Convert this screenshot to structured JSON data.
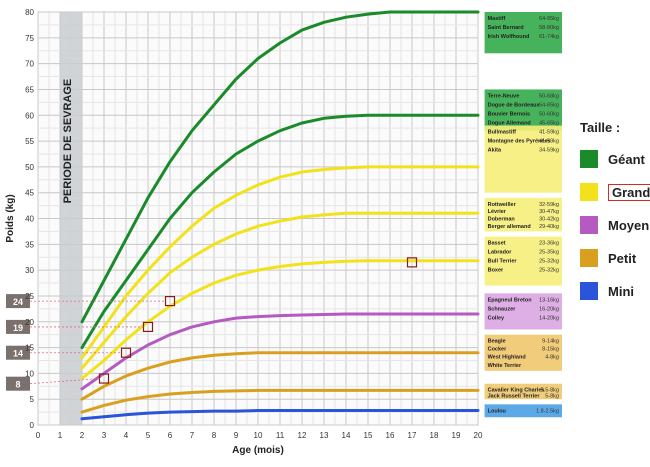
{
  "chart_data": {
    "type": "line",
    "xlabel": "Age (mois)",
    "ylabel": "Poids (kg)",
    "xlim": [
      0,
      20
    ],
    "ylim": [
      0,
      80
    ],
    "x_ticks": [
      "0",
      "1",
      "2",
      "3",
      "4",
      "5",
      "6",
      "7",
      "8",
      "9",
      "10",
      "11",
      "12",
      "13",
      "14",
      "15",
      "16",
      "17",
      "18",
      "19",
      "20"
    ],
    "y_ticks": [
      "0",
      "5",
      "10",
      "15",
      "20",
      "25",
      "30",
      "35",
      "40",
      "45",
      "50",
      "55",
      "60",
      "65",
      "70",
      "75",
      "80"
    ],
    "weaning_label": "PERIODE DE SEVRAGE",
    "weaning_range": [
      1,
      2
    ],
    "legend_title": "Taille :",
    "legend": [
      {
        "label": "Géant",
        "color": "#1a8a2a"
      },
      {
        "label": "Grand",
        "color": "#f2e21c",
        "highlight": true
      },
      {
        "label": "Moyen",
        "color": "#b45ac0"
      },
      {
        "label": "Petit",
        "color": "#d9a020"
      },
      {
        "label": "Mini",
        "color": "#2a55d8"
      }
    ],
    "series": [
      {
        "group": "Géant",
        "color": "#1a8a2a",
        "x": [
          2,
          3,
          4,
          5,
          6,
          7,
          8,
          9,
          10,
          11,
          12,
          13,
          14,
          15,
          16,
          17,
          18,
          19,
          20
        ],
        "y": [
          20,
          28,
          36,
          44,
          51,
          57,
          62,
          67,
          71,
          74,
          76.5,
          78,
          79,
          79.6,
          80,
          80,
          80,
          80,
          80
        ]
      },
      {
        "group": "Géant",
        "color": "#1a8a2a",
        "x": [
          2,
          3,
          4,
          5,
          6,
          7,
          8,
          9,
          10,
          11,
          12,
          13,
          14,
          15,
          16,
          17,
          18,
          19,
          20
        ],
        "y": [
          15,
          22,
          28,
          34,
          40,
          45,
          49,
          52.5,
          55,
          57,
          58.5,
          59.4,
          59.8,
          60,
          60,
          60,
          60,
          60,
          60
        ]
      },
      {
        "group": "Grand",
        "color": "#f2e21c",
        "x": [
          2,
          3,
          4,
          5,
          6,
          7,
          8,
          9,
          10,
          11,
          12,
          13,
          14,
          15,
          16,
          17,
          18,
          19,
          20
        ],
        "y": [
          13,
          19,
          25,
          30,
          34.5,
          38.5,
          42,
          44.5,
          46.5,
          48,
          49,
          49.5,
          49.8,
          50,
          50,
          50,
          50,
          50,
          50
        ]
      },
      {
        "group": "Grand",
        "color": "#f2e21c",
        "x": [
          2,
          3,
          4,
          5,
          6,
          7,
          8,
          9,
          10,
          11,
          12,
          13,
          14,
          15,
          16,
          17,
          18,
          19,
          20
        ],
        "y": [
          11,
          16,
          21,
          25.5,
          29.5,
          32.5,
          35,
          37,
          38.5,
          39.5,
          40.3,
          40.7,
          41,
          41,
          41,
          41,
          41,
          41,
          41
        ]
      },
      {
        "group": "Grand",
        "color": "#f2e21c",
        "x": [
          2,
          3,
          4,
          5,
          6,
          7,
          8,
          9,
          10,
          11,
          12,
          13,
          14,
          15,
          16,
          17,
          18,
          19,
          20
        ],
        "y": [
          9,
          12.5,
          16.5,
          20,
          23,
          25.5,
          27.5,
          29,
          30,
          30.7,
          31.2,
          31.5,
          31.7,
          31.8,
          31.8,
          31.8,
          31.8,
          31.8,
          31.8
        ]
      },
      {
        "group": "Moyen",
        "color": "#b45ac0",
        "x": [
          2,
          3,
          4,
          5,
          6,
          7,
          8,
          9,
          10,
          11,
          12,
          13,
          14,
          15,
          16,
          17,
          18,
          19,
          20
        ],
        "y": [
          7,
          10,
          13,
          15.5,
          17.5,
          19,
          20,
          20.7,
          21,
          21.2,
          21.3,
          21.4,
          21.5,
          21.5,
          21.5,
          21.5,
          21.5,
          21.5,
          21.5
        ]
      },
      {
        "group": "Petit",
        "color": "#d9a020",
        "x": [
          2,
          3,
          4,
          5,
          6,
          7,
          8,
          9,
          10,
          11,
          12,
          13,
          14,
          15,
          16,
          17,
          18,
          19,
          20
        ],
        "y": [
          5,
          7.5,
          9.5,
          11,
          12.2,
          13,
          13.5,
          13.8,
          14,
          14,
          14,
          14,
          14,
          14,
          14,
          14,
          14,
          14,
          14
        ]
      },
      {
        "group": "Petit",
        "color": "#d9a020",
        "x": [
          2,
          3,
          4,
          5,
          6,
          7,
          8,
          9,
          10,
          11,
          12,
          13,
          14,
          15,
          16,
          17,
          18,
          19,
          20
        ],
        "y": [
          2.5,
          3.8,
          4.8,
          5.5,
          6,
          6.3,
          6.5,
          6.6,
          6.7,
          6.7,
          6.7,
          6.7,
          6.7,
          6.7,
          6.7,
          6.7,
          6.7,
          6.7,
          6.7
        ]
      },
      {
        "group": "Mini",
        "color": "#2a55d8",
        "x": [
          2,
          3,
          4,
          5,
          6,
          7,
          8,
          9,
          10,
          11,
          12,
          13,
          14,
          15,
          16,
          17,
          18,
          19,
          20
        ],
        "y": [
          1.2,
          1.6,
          2,
          2.3,
          2.5,
          2.6,
          2.7,
          2.7,
          2.8,
          2.8,
          2.8,
          2.8,
          2.8,
          2.8,
          2.8,
          2.8,
          2.8,
          2.8,
          2.8
        ]
      }
    ],
    "marker_points": [
      {
        "x": 3,
        "y": 9
      },
      {
        "x": 4,
        "y": 14
      },
      {
        "x": 5,
        "y": 19
      },
      {
        "x": 6,
        "y": 24
      },
      {
        "x": 17,
        "y": 31.5
      }
    ],
    "left_tags": [
      "24",
      "19",
      "14",
      "8"
    ],
    "breed_boxes": [
      {
        "color": "#33aa4a",
        "y_top": 80,
        "y_bottom": 72,
        "rows": [
          [
            "Mastiff",
            "64-95kg"
          ],
          [
            "Saint Bernard",
            "58-80kg"
          ],
          [
            "Irish Wolfhound",
            "61-74kg"
          ]
        ]
      },
      {
        "color": "#33aa4a",
        "y_top": 65,
        "y_bottom": 57,
        "rows": [
          [
            "Terre-Neuve",
            "50-68kg"
          ],
          [
            "Dogue de Bordeaux",
            "54-65kg"
          ],
          [
            "Bouvier Bernois",
            "50-60kg"
          ],
          [
            "Dogue Allemand",
            "45-65kg"
          ]
        ]
      },
      {
        "color": "#f6ee7a",
        "y_top": 58,
        "y_bottom": 45,
        "rows": [
          [
            "Bullmastiff",
            "41-59kg"
          ],
          [
            "Montagne des Pyrénées",
            "41-59kg"
          ],
          [
            "Akita",
            "34-59kg"
          ]
        ]
      },
      {
        "color": "#f6ee7a",
        "y_top": 44,
        "y_bottom": 37.5,
        "rows": [
          [
            "Rottweiller",
            "32-59kg"
          ],
          [
            "Lévrier",
            "30-47kg"
          ],
          [
            "Doberman",
            "30-42kg"
          ],
          [
            "Berger allemand",
            "29-40kg"
          ]
        ]
      },
      {
        "color": "#f6ee7a",
        "y_top": 36.5,
        "y_bottom": 27,
        "rows": [
          [
            "Basset",
            "23-36kg"
          ],
          [
            "Labrador",
            "25-35kg"
          ],
          [
            "Bull Terrier",
            "25-32kg"
          ],
          [
            "Boxer",
            "25-32kg"
          ]
        ]
      },
      {
        "color": "#d9a6e2",
        "y_top": 25.5,
        "y_bottom": 18.5,
        "rows": [
          [
            "Epagneul Breton",
            "13-16kg"
          ],
          [
            "Schnauzer",
            "16-20kg"
          ],
          [
            "Colley",
            "14-20kg"
          ]
        ]
      },
      {
        "color": "#f0c66c",
        "y_top": 17.5,
        "y_bottom": 10.5,
        "rows": [
          [
            "Beagle",
            "9-14kg"
          ],
          [
            "Cocker",
            "8-15kg"
          ],
          [
            "West Highland",
            "4-8kg"
          ],
          [
            "White Terrier",
            ""
          ]
        ]
      },
      {
        "color": "#f0c66c",
        "y_top": 8,
        "y_bottom": 5,
        "rows": [
          [
            "Cavalier King Charles",
            "5.5-8kg"
          ],
          [
            "Jack Russell Terrier",
            "5-8kg"
          ]
        ]
      },
      {
        "color": "#4aa0e6",
        "y_top": 4,
        "y_bottom": 1.5,
        "rows": [
          [
            "Loulou",
            "1.8-2.5kg"
          ]
        ]
      }
    ],
    "grid": true
  }
}
